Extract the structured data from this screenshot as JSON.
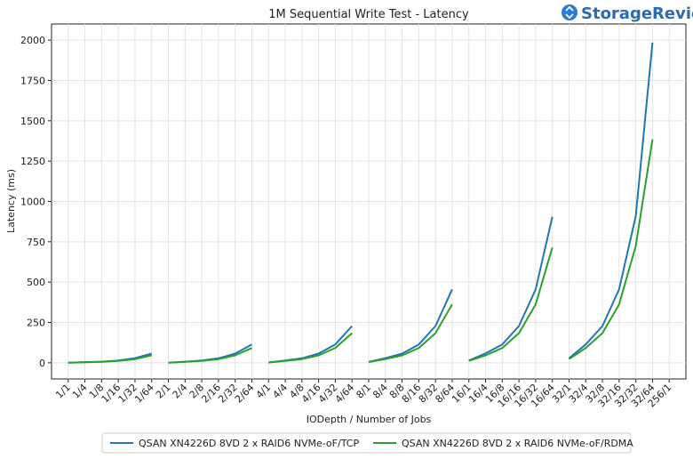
{
  "brand": {
    "name": "StorageReview",
    "accent": "#2b7bd3"
  },
  "chart_data": {
    "type": "line",
    "title": "1M Sequential Write Test - Latency",
    "xlabel": "IODepth / Number of Jobs",
    "ylabel": "Latency (ms)",
    "ylim": [
      -100,
      2100
    ],
    "yticks": [
      0,
      250,
      500,
      750,
      1000,
      1250,
      1500,
      1750,
      2000
    ],
    "grid": true,
    "legend_position": "bottom-center",
    "categories": [
      "1/1",
      "1/4",
      "1/8",
      "1/16",
      "1/32",
      "1/64",
      "2/1",
      "2/4",
      "2/8",
      "2/16",
      "2/32",
      "2/64",
      "4/1",
      "4/4",
      "4/8",
      "4/16",
      "4/32",
      "4/64",
      "8/1",
      "8/4",
      "8/8",
      "8/16",
      "8/32",
      "8/64",
      "16/1",
      "16/4",
      "16/8",
      "16/16",
      "16/32",
      "16/64",
      "32/1",
      "32/4",
      "32/8",
      "32/16",
      "32/32",
      "32/64",
      "256/1"
    ],
    "series": [
      {
        "name": "QSAN XN4226D 8VD 2 x RAID6 NVMe-oF/TCP",
        "color": "#1f77b4",
        "values": [
          1,
          4,
          7,
          14,
          29,
          57,
          1,
          7,
          14,
          28,
          57,
          114,
          2,
          14,
          28,
          57,
          114,
          228,
          6,
          29,
          57,
          114,
          228,
          455,
          14,
          58,
          114,
          228,
          455,
          905,
          28,
          114,
          228,
          455,
          910,
          1985,
          null
        ]
      },
      {
        "name": "QSAN XN4226D 8VD 2 x RAID6 NVMe-oF/RDMA",
        "color": "#2ca02c",
        "values": [
          1,
          3,
          6,
          12,
          23,
          46,
          1,
          6,
          12,
          23,
          46,
          92,
          2,
          12,
          23,
          46,
          92,
          184,
          5,
          23,
          46,
          92,
          184,
          362,
          12,
          46,
          92,
          184,
          362,
          715,
          23,
          92,
          184,
          362,
          725,
          1385,
          null
        ]
      }
    ]
  }
}
